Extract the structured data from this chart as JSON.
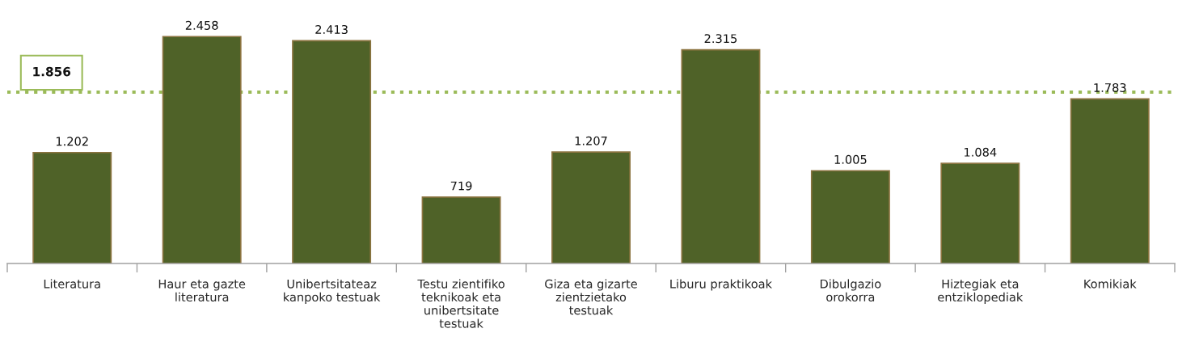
{
  "chart_data": {
    "type": "bar",
    "categories": [
      "Literatura",
      "Haur eta gazte\nliteratura",
      "Unibertsitateaz\nkanpoko testuak",
      "Testu zientifiko\nteknikoak eta\nunibertsitate\ntestuak",
      "Giza eta gizarte\nzientzietako\ntestuak",
      "Liburu praktikoak",
      "Dibulgazio\norokorra",
      "Hiztegiak eta\nentziklopediak",
      "Komikiak"
    ],
    "values": [
      1202,
      2458,
      2413,
      719,
      1207,
      2315,
      1005,
      1084,
      1783
    ],
    "value_labels": [
      "1.202",
      "2.458",
      "2.413",
      "719",
      "1.207",
      "2.315",
      "1.005",
      "1.084",
      "1.783"
    ],
    "color": "#4f6228",
    "ref_lines": [
      {
        "axis": "y",
        "value": 1856,
        "label": "1.856",
        "color": "#9bbb59",
        "line_style": "dotted"
      }
    ]
  }
}
